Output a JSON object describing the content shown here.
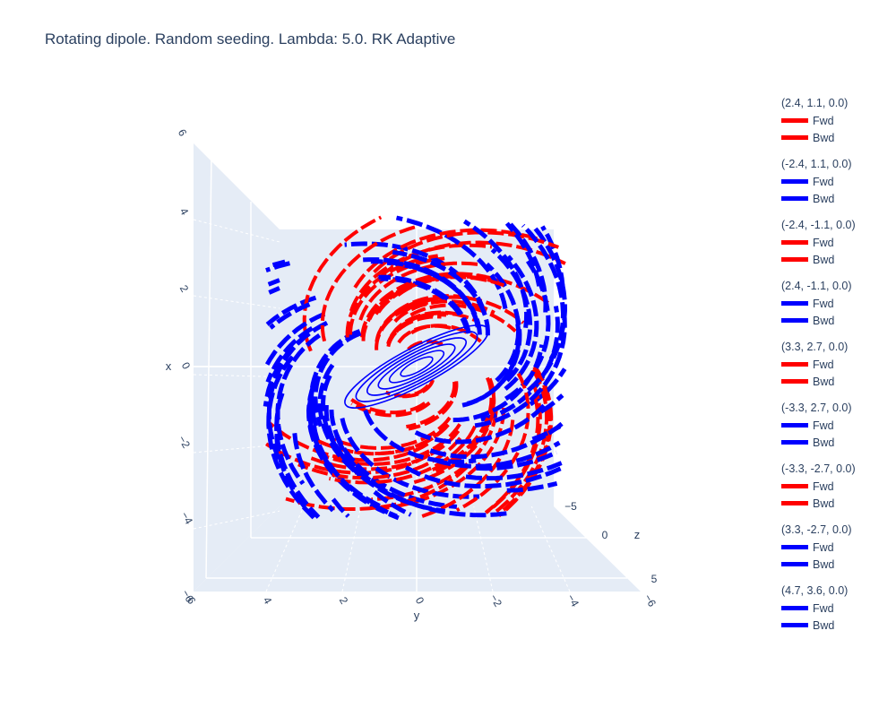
{
  "colors": {
    "red": "#ff0000",
    "blue": "#0000ff",
    "pane": "#e5ecf6",
    "grid": "#ffffff",
    "text": "#2a3f5f"
  },
  "chart_data": {
    "type": "line",
    "dimension": "3d",
    "title": "Rotating dipole. Random seeding. Lambda: 5.0. RK Adaptive",
    "axes": {
      "x": {
        "title": "x",
        "ticks": [
          "6",
          "4",
          "2",
          "0",
          "−2",
          "−4",
          "−6"
        ]
      },
      "y": {
        "title": "y",
        "ticks": [
          "6",
          "4",
          "2",
          "0",
          "−2",
          "−4",
          "−6"
        ]
      },
      "z": {
        "title": "z",
        "ticks": [
          "−5",
          "0",
          "5"
        ]
      }
    },
    "grid": true,
    "legend_position": "right",
    "series": [
      {
        "name": "(2.4, 1.1, 0.0)",
        "color": "#ff0000",
        "spin": 1,
        "entries": [
          "Fwd",
          "Bwd"
        ]
      },
      {
        "name": "(-2.4, 1.1, 0.0)",
        "color": "#0000ff",
        "spin": -1,
        "entries": [
          "Fwd",
          "Bwd"
        ]
      },
      {
        "name": "(-2.4, -1.1, 0.0)",
        "color": "#ff0000",
        "spin": 1,
        "entries": [
          "Fwd",
          "Bwd"
        ]
      },
      {
        "name": "(2.4, -1.1, 0.0)",
        "color": "#0000ff",
        "spin": -1,
        "entries": [
          "Fwd",
          "Bwd"
        ]
      },
      {
        "name": "(3.3, 2.7, 0.0)",
        "color": "#ff0000",
        "spin": 1,
        "entries": [
          "Fwd",
          "Bwd"
        ]
      },
      {
        "name": "(-3.3, 2.7, 0.0)",
        "color": "#0000ff",
        "spin": -1,
        "entries": [
          "Fwd",
          "Bwd"
        ]
      },
      {
        "name": "(-3.3, -2.7, 0.0)",
        "color": "#ff0000",
        "spin": 1,
        "entries": [
          "Fwd",
          "Bwd"
        ]
      },
      {
        "name": "(3.3, -2.7, 0.0)",
        "color": "#0000ff",
        "spin": -1,
        "entries": [
          "Fwd",
          "Bwd"
        ]
      },
      {
        "name": "(4.7, 3.6, 0.0)",
        "color": "#0000ff",
        "spin": -1,
        "entries": [
          "Fwd",
          "Bwd"
        ]
      }
    ]
  }
}
